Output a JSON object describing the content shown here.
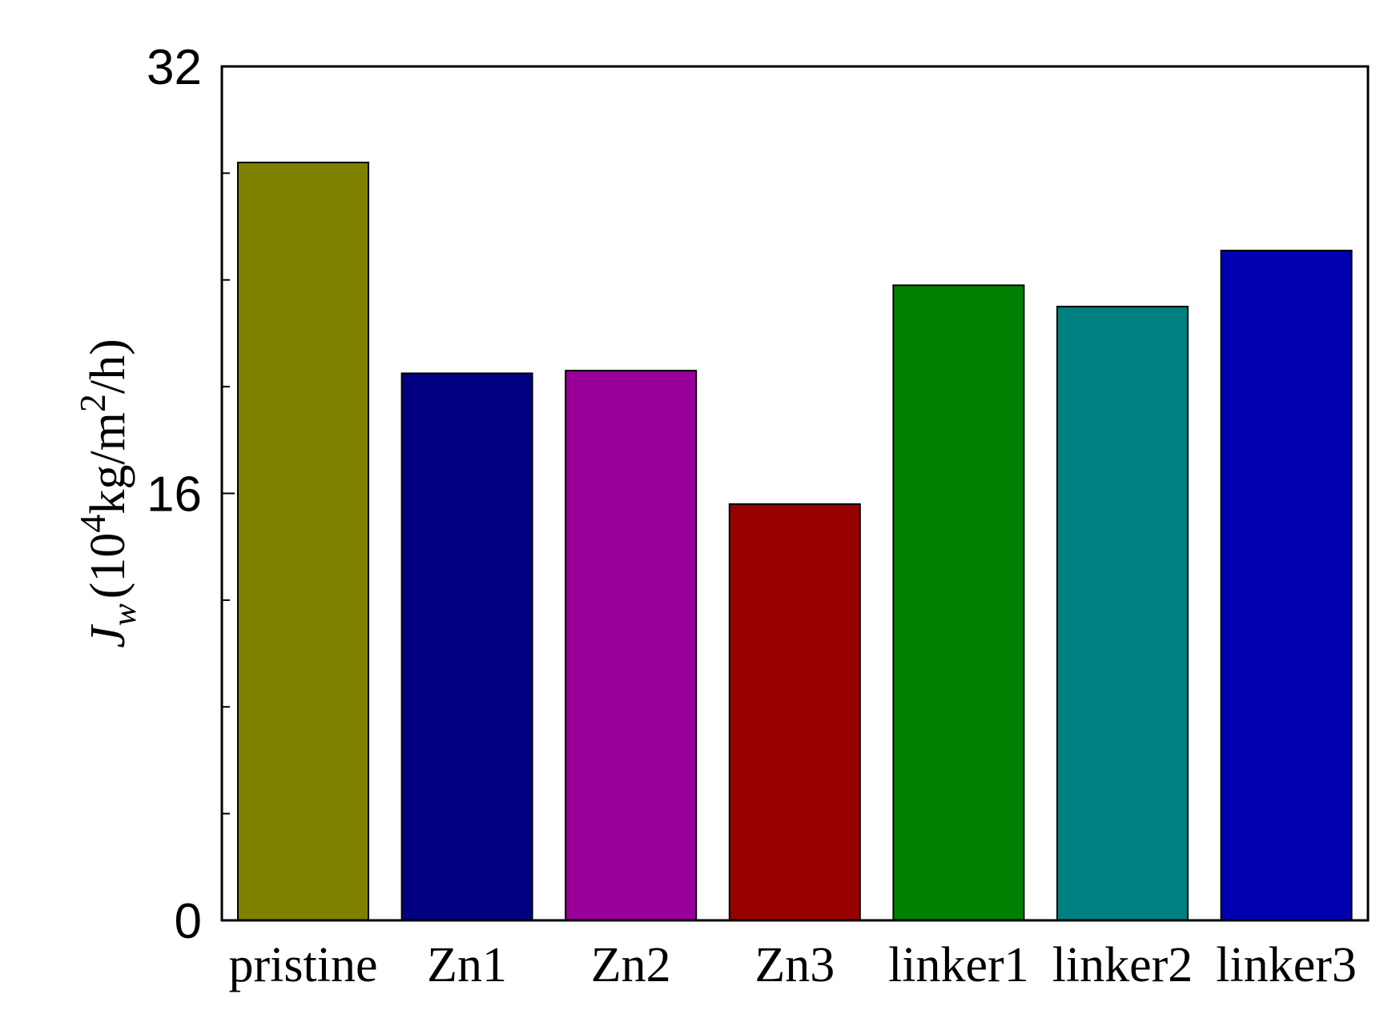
{
  "chart_data": {
    "type": "bar",
    "categories": [
      "pristine",
      "Zn1",
      "Zn2",
      "Zn3",
      "linker1",
      "linker2",
      "linker3"
    ],
    "values": [
      28.4,
      20.5,
      20.6,
      15.6,
      23.8,
      23.0,
      25.1
    ],
    "colors": [
      "#808000",
      "#000080",
      "#990099",
      "#990000",
      "#008000",
      "#008080",
      "#0000b0"
    ],
    "ylim": [
      0,
      32
    ],
    "yticks": [
      0,
      16,
      32
    ],
    "yticks_minor": [
      4,
      8,
      12,
      20,
      24,
      28
    ],
    "ylabel": {
      "symbol": "J",
      "subscript": "w",
      "text_open": "(10",
      "sup1": "4",
      "text_mid": "kg/m",
      "sup2": "2",
      "text_close": "/h)"
    },
    "xlabel": "",
    "title": "",
    "grid": false,
    "legend": "none"
  }
}
